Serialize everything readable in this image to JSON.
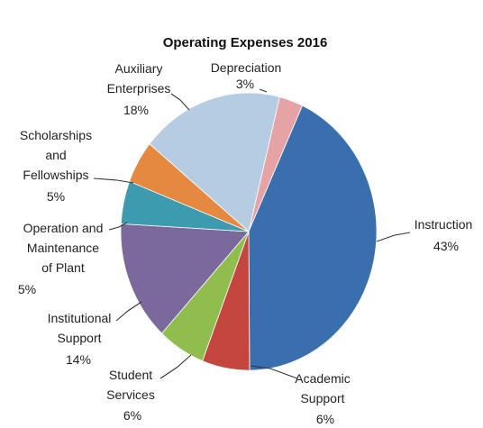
{
  "chart_data": {
    "type": "pie",
    "title": "Operating Expenses 2016",
    "slices": [
      {
        "label": "Depreciation",
        "percent_label": "3%",
        "value": 3,
        "color": "#e6a3a6"
      },
      {
        "label": "Instruction",
        "percent_label": "43%",
        "value": 43,
        "color": "#3a6fae"
      },
      {
        "label": "Academic Support",
        "percent_label": "6%",
        "value": 6,
        "color": "#c5453f"
      },
      {
        "label": "Student Services",
        "percent_label": "6%",
        "value": 6,
        "color": "#8fbd4e"
      },
      {
        "label": "Institutional Support",
        "percent_label": "14%",
        "value": 14,
        "color": "#7b699c"
      },
      {
        "label": "Operation and Maintenance of Plant",
        "percent_label": "5%",
        "value": 5,
        "color": "#3d9bb0"
      },
      {
        "label": "Scholarships and Fellowships",
        "percent_label": "5%",
        "value": 5,
        "color": "#e4893f"
      },
      {
        "label": "Auxiliary Enterprises",
        "percent_label": "18%",
        "value": 18,
        "color": "#b6cce3"
      }
    ]
  }
}
